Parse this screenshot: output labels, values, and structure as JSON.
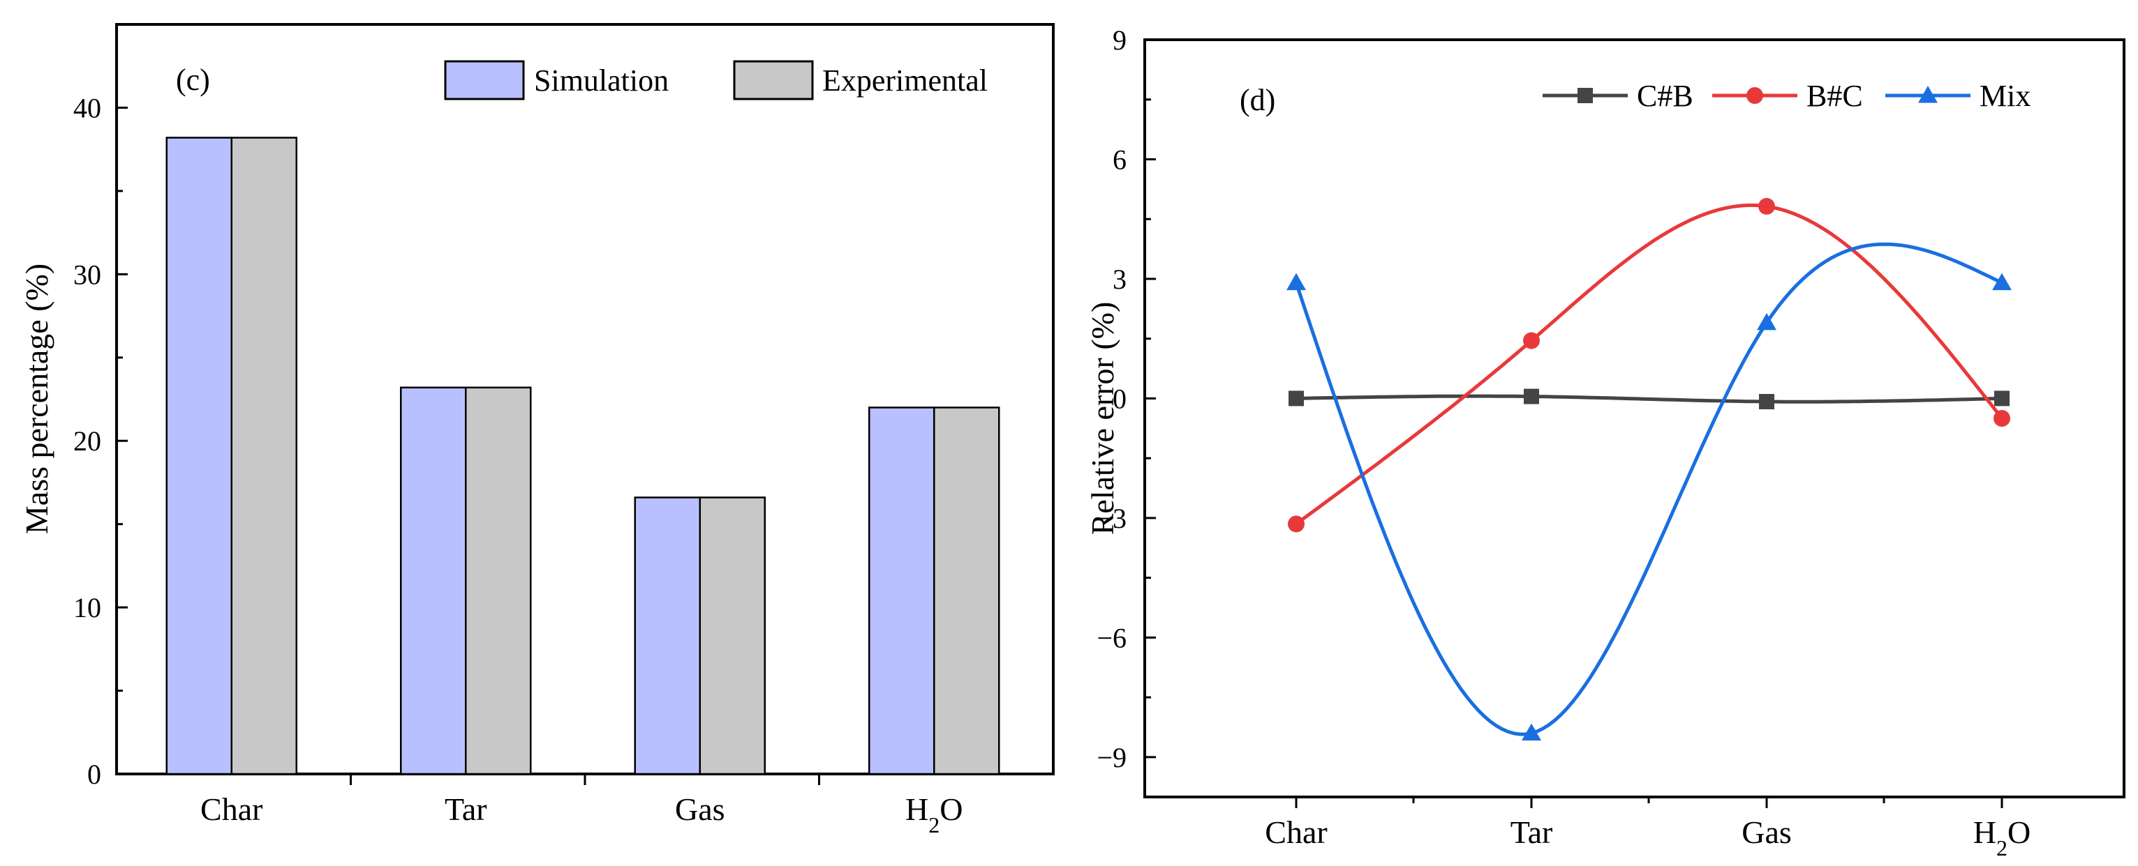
{
  "chart_data": [
    {
      "type": "bar",
      "panel_label": "(c)",
      "title": "",
      "xlabel": "",
      "ylabel": "Mass percentage (%)",
      "categories": [
        "Char",
        "Tar",
        "Gas",
        "H2O"
      ],
      "ylim": [
        0,
        45
      ],
      "yticks": [
        0,
        10,
        20,
        30,
        40
      ],
      "grid": false,
      "legend": "top-right",
      "series": [
        {
          "name": "Simulation",
          "color": "#b9c0ff",
          "values": [
            38.2,
            23.2,
            16.6,
            22.0
          ]
        },
        {
          "name": "Experimental",
          "color": "#c8c8c8",
          "values": [
            38.2,
            23.2,
            16.6,
            22.0
          ]
        }
      ]
    },
    {
      "type": "line",
      "panel_label": "(d)",
      "title": "",
      "xlabel": "",
      "ylabel": "Relative error (%)",
      "categories": [
        "Char",
        "Tar",
        "Gas",
        "H2O"
      ],
      "ylim": [
        -10,
        9
      ],
      "yticks": [
        -9,
        -6,
        -3,
        0,
        3,
        6,
        9
      ],
      "grid": false,
      "legend": "top-right",
      "series": [
        {
          "name": "C#B",
          "color": "#444444",
          "marker": "square",
          "values": [
            0.0,
            0.05,
            -0.08,
            0.0
          ]
        },
        {
          "name": "B#C",
          "color": "#e8393a",
          "marker": "circle",
          "values": [
            -3.15,
            1.45,
            4.82,
            -0.5
          ]
        },
        {
          "name": "Mix",
          "color": "#1a6fe0",
          "marker": "triangle",
          "values": [
            2.9,
            -8.4,
            1.9,
            2.9
          ]
        }
      ]
    }
  ]
}
